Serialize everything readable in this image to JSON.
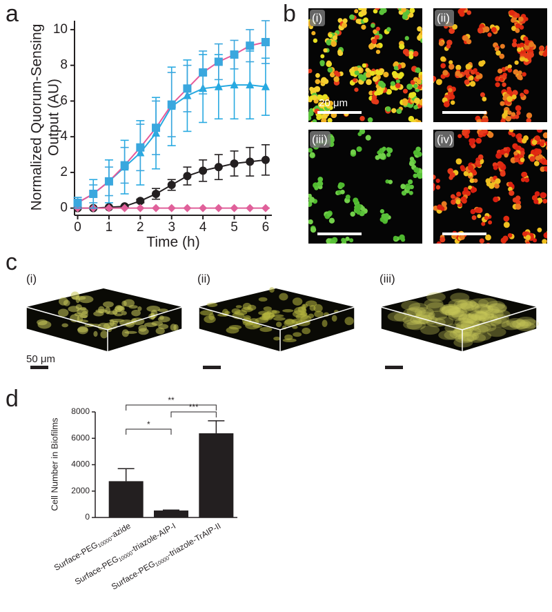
{
  "panel_labels": [
    "a",
    "b",
    "c",
    "d"
  ],
  "chart_data": [
    {
      "type": "line",
      "x": [
        0,
        0.5,
        1,
        1.5,
        2,
        2.5,
        3,
        3.5,
        4,
        4.5,
        5,
        5.5,
        6
      ],
      "xlabel": "Time (h)",
      "ylabel": [
        "Normalized Quorum-Sensing",
        "Output (AU)"
      ],
      "xlim": [
        -0.1,
        6.2
      ],
      "xticks": [
        0,
        1,
        2,
        3,
        4,
        5,
        6
      ],
      "ylim": [
        -0.4,
        10.5
      ],
      "yticks": [
        0,
        2,
        4,
        6,
        8,
        10
      ],
      "series": [
        {
          "color": "#231f20",
          "marker": "circle",
          "marker_color": "#231f20",
          "values": [
            0,
            0,
            0.05,
            0.1,
            0.4,
            0.8,
            1.3,
            1.8,
            2.1,
            2.3,
            2.5,
            2.6,
            2.7
          ],
          "errors": [
            0,
            0,
            0,
            0.05,
            0.1,
            0.3,
            0.3,
            0.5,
            0.6,
            0.7,
            0.7,
            0.8,
            0.85
          ]
        },
        {
          "color": "#e0609a",
          "marker": "diamond",
          "marker_color": "#e0609a",
          "values": [
            0,
            0,
            0,
            0,
            0,
            0,
            0,
            0,
            0,
            0,
            0,
            0,
            0
          ],
          "errors": [
            0,
            0,
            0,
            0,
            0,
            0,
            0,
            0,
            0,
            0,
            0,
            0,
            0
          ]
        },
        {
          "color": "#27a9e1",
          "marker": "triangle",
          "marker_color": "#27a9e1",
          "values": [
            0.3,
            0.8,
            1.5,
            2.3,
            3.1,
            4.2,
            5.7,
            6.3,
            6.7,
            6.8,
            6.9,
            6.9,
            6.8
          ],
          "errors": [
            0.3,
            0.8,
            1.2,
            1.5,
            1.8,
            2.0,
            2.2,
            2.0,
            1.9,
            1.8,
            1.9,
            1.9,
            1.6
          ]
        },
        {
          "color": "#e75a9a",
          "marker": "square",
          "marker_color": "#3aa7de",
          "values": [
            0.3,
            0.8,
            1.5,
            2.4,
            3.4,
            4.5,
            5.8,
            6.7,
            7.6,
            8.2,
            8.6,
            9.1,
            9.3
          ],
          "errors": [
            0.3,
            0.5,
            0.8,
            1.0,
            1.3,
            1.5,
            1.8,
            1.3,
            1.2,
            1.0,
            0.8,
            0.9,
            1.2
          ]
        }
      ]
    },
    {
      "type": "bar",
      "categories": [
        "Surface-PEG10000-azide",
        "Surface-PEG10000-triazole-AIP-I",
        "Surface-PEG10000-triazole-TrAIP-II"
      ],
      "values": [
        2750,
        530,
        6380
      ],
      "errors": [
        950,
        30,
        950
      ],
      "color": "#231f20",
      "ylabel": "Cell Number in Biofilms",
      "ylim": [
        0,
        8000
      ],
      "yticks": [
        0,
        2000,
        4000,
        6000,
        8000
      ],
      "annotations": [
        "*",
        "***",
        "**"
      ]
    }
  ],
  "micrographs": {
    "labels": [
      "(i)",
      "(ii)",
      "(iii)",
      "(iv)"
    ],
    "scale_bar": "20 μm"
  },
  "biofilms": {
    "labels": [
      "(i)",
      "(ii)",
      "(iii)"
    ],
    "scale_bar": "50 μm"
  }
}
